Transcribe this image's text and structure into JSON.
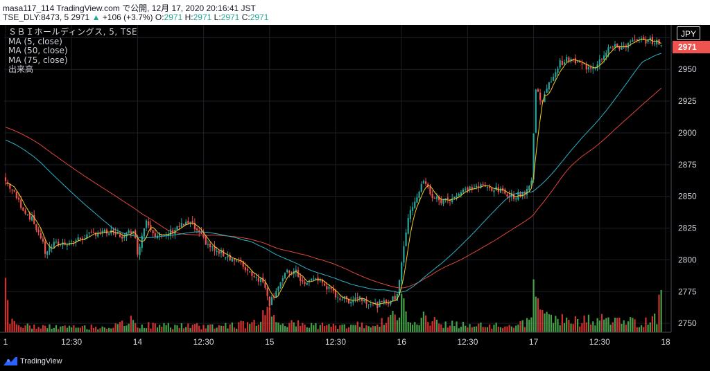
{
  "header": {
    "line1": "masa117_114 TradingView.com で公開, 12月 17, 2020 20:16:41 JST",
    "symbol_prefix": "TSE_DLY:8473, 5",
    "last": "2971",
    "change_arrow": "▲",
    "change": "+106 (+3.7%)",
    "o_label": "O:",
    "o_val": "2971",
    "h_label": "H:",
    "h_val": "2971",
    "l_label": "L:",
    "l_val": "2971",
    "c_label": "C:",
    "c_val": "2971"
  },
  "legend": {
    "title": "ＳＢＩホールディングス, 5, TSE",
    "ma5": "MA (5, close)",
    "ma50": "MA (50, close)",
    "ma75": "MA (75, close)",
    "volume": "出来高"
  },
  "currency": "JPY",
  "last_price_tag": "2971",
  "footer": {
    "brand": "TradingView",
    "brand_icon": "tradingview-logo-icon"
  },
  "colors": {
    "up": "#26a69a",
    "down": "#ef5350",
    "ma5": "#f7c82a",
    "ma50": "#2bb3c8",
    "ma75": "#e0463a",
    "vol_up": "#4caf50",
    "vol_down": "#e53935",
    "grid": "#1c1f26"
  },
  "chart_data": {
    "type": "candlestick",
    "y_ticks": [
      2750,
      2775,
      2800,
      2825,
      2850,
      2875,
      2900,
      2925,
      2950,
      2975
    ],
    "y_tick_labels": [
      "2750",
      "2775",
      "2800",
      "2825",
      "2850",
      "2875",
      "2900",
      "2925",
      "2950",
      ""
    ],
    "ylim": [
      2743,
      2985
    ],
    "x_labels": [
      "1",
      "12:30",
      "14",
      "12:30",
      "15",
      "12:30",
      "16",
      "12:30",
      "17",
      "12:30",
      "18"
    ],
    "x_range": [
      0,
      300
    ],
    "x_label_bars": [
      0,
      30,
      60,
      90,
      120,
      150,
      180,
      210,
      240,
      270,
      300
    ],
    "candles_per_day": 60,
    "close_anchors": [
      [
        0,
        2862
      ],
      [
        3,
        2855
      ],
      [
        8,
        2840
      ],
      [
        12,
        2832
      ],
      [
        16,
        2818
      ],
      [
        18,
        2806
      ],
      [
        22,
        2812
      ],
      [
        30,
        2814
      ],
      [
        36,
        2818
      ],
      [
        42,
        2822
      ],
      [
        48,
        2821
      ],
      [
        54,
        2818
      ],
      [
        58,
        2825
      ],
      [
        60,
        2806
      ],
      [
        64,
        2832
      ],
      [
        68,
        2820
      ],
      [
        72,
        2818
      ],
      [
        78,
        2826
      ],
      [
        84,
        2829
      ],
      [
        88,
        2820
      ],
      [
        92,
        2812
      ],
      [
        96,
        2806
      ],
      [
        100,
        2804
      ],
      [
        104,
        2800
      ],
      [
        108,
        2795
      ],
      [
        112,
        2789
      ],
      [
        116,
        2784
      ],
      [
        118,
        2780
      ],
      [
        120,
        2766
      ],
      [
        124,
        2780
      ],
      [
        128,
        2790
      ],
      [
        132,
        2790
      ],
      [
        136,
        2780
      ],
      [
        140,
        2786
      ],
      [
        144,
        2782
      ],
      [
        148,
        2775
      ],
      [
        152,
        2770
      ],
      [
        156,
        2768
      ],
      [
        160,
        2771
      ],
      [
        164,
        2768
      ],
      [
        168,
        2764
      ],
      [
        172,
        2766
      ],
      [
        176,
        2769
      ],
      [
        178,
        2772
      ],
      [
        181,
        2812
      ],
      [
        184,
        2840
      ],
      [
        187,
        2850
      ],
      [
        190,
        2862
      ],
      [
        194,
        2850
      ],
      [
        198,
        2846
      ],
      [
        204,
        2850
      ],
      [
        210,
        2856
      ],
      [
        216,
        2858
      ],
      [
        222,
        2856
      ],
      [
        228,
        2852
      ],
      [
        232,
        2850
      ],
      [
        236,
        2854
      ],
      [
        238,
        2858
      ],
      [
        239,
        2862
      ],
      [
        241,
        2935
      ],
      [
        244,
        2925
      ],
      [
        248,
        2942
      ],
      [
        252,
        2955
      ],
      [
        256,
        2958
      ],
      [
        260,
        2955
      ],
      [
        264,
        2952
      ],
      [
        268,
        2953
      ],
      [
        270,
        2958
      ],
      [
        274,
        2967
      ],
      [
        280,
        2968
      ],
      [
        286,
        2972
      ],
      [
        292,
        2973
      ],
      [
        296,
        2971
      ],
      [
        298,
        2971
      ]
    ],
    "volume_anchors": [
      [
        0,
        70
      ],
      [
        2,
        22
      ],
      [
        6,
        12
      ],
      [
        10,
        10
      ],
      [
        30,
        8
      ],
      [
        50,
        10
      ],
      [
        58,
        20
      ],
      [
        60,
        12
      ],
      [
        90,
        10
      ],
      [
        112,
        14
      ],
      [
        118,
        28
      ],
      [
        120,
        58
      ],
      [
        122,
        24
      ],
      [
        130,
        14
      ],
      [
        150,
        10
      ],
      [
        170,
        14
      ],
      [
        178,
        30
      ],
      [
        180,
        44
      ],
      [
        184,
        28
      ],
      [
        190,
        24
      ],
      [
        200,
        14
      ],
      [
        220,
        10
      ],
      [
        236,
        14
      ],
      [
        239,
        24
      ],
      [
        240,
        108
      ],
      [
        242,
        40
      ],
      [
        246,
        28
      ],
      [
        252,
        24
      ],
      [
        260,
        18
      ],
      [
        270,
        22
      ],
      [
        280,
        18
      ],
      [
        290,
        16
      ],
      [
        296,
        24
      ],
      [
        298,
        70
      ]
    ],
    "ma5_last": 2970,
    "ma50_last": 2964,
    "ma75_last": 2940
  }
}
